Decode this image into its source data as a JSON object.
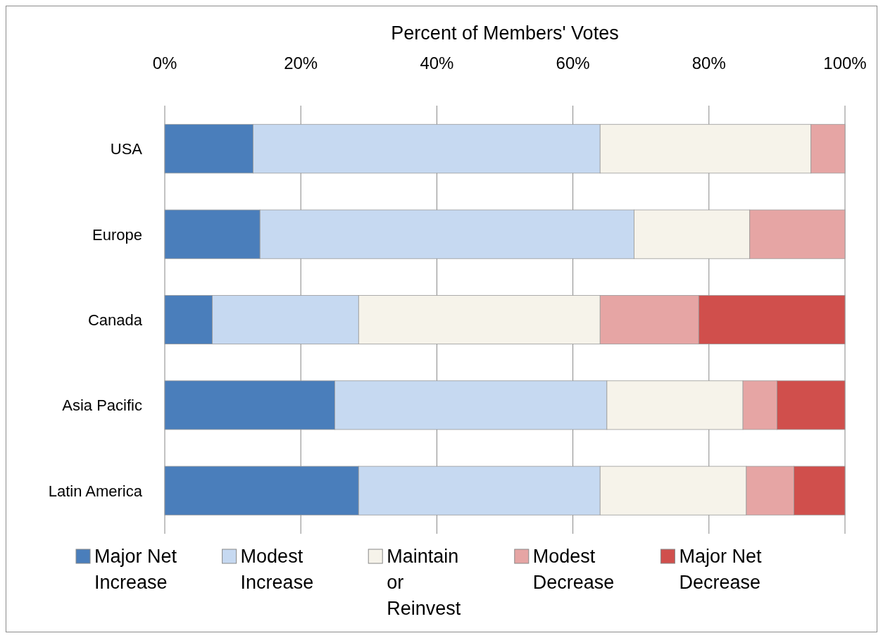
{
  "chart_data": {
    "type": "bar",
    "orientation": "horizontal",
    "stacked": true,
    "title": "Percent of Members' Votes",
    "categories": [
      "USA",
      "Europe",
      "Canada",
      "Asia Pacific",
      "Latin America"
    ],
    "series": [
      {
        "name": "Major Net Increase",
        "color": "#4a7ebb",
        "values": [
          13,
          14,
          7,
          25,
          28.5
        ]
      },
      {
        "name": "Modest Increase",
        "color": "#c6d9f1",
        "values": [
          51,
          55,
          21.5,
          40,
          35.5
        ]
      },
      {
        "name": "Maintain or Reinvest",
        "color": "#f6f3ea",
        "values": [
          31,
          17,
          35.5,
          20,
          21.5
        ]
      },
      {
        "name": "Modest Decrease",
        "color": "#e6a5a4",
        "values": [
          5,
          14,
          14.5,
          5,
          7
        ]
      },
      {
        "name": "Major Net Decrease",
        "color": "#d04f4c",
        "values": [
          0,
          0,
          21.5,
          10,
          7.5
        ]
      }
    ],
    "xlim": [
      0,
      100
    ],
    "xticks": [
      {
        "value": 0,
        "label": "0%"
      },
      {
        "value": 20,
        "label": "20%"
      },
      {
        "value": 40,
        "label": "40%"
      },
      {
        "value": 60,
        "label": "60%"
      },
      {
        "value": 80,
        "label": "80%"
      },
      {
        "value": 100,
        "label": "100%"
      }
    ],
    "grid": "x",
    "legend": "bottom"
  }
}
